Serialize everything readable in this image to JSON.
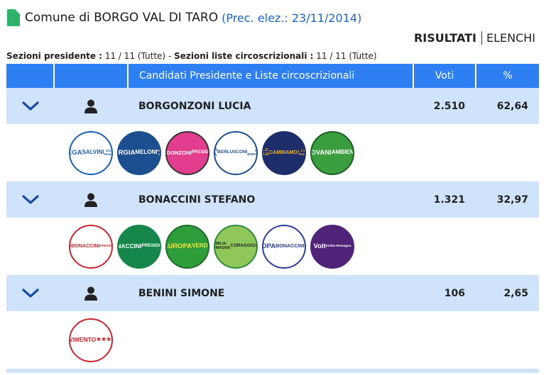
{
  "header": {
    "comune": "Comune di BORGO VAL DI TARO",
    "prec": "(Prec. elez.: 23/11/2014)"
  },
  "modes": {
    "risultati": "RISULTATI",
    "elenchi": "ELENCHI"
  },
  "sezioni": {
    "pres_label": "Sezioni presidente :",
    "pres_value": "11 / 11 (Tutte)",
    "sep": "-",
    "liste_label": "Sezioni liste circoscrizionali :",
    "liste_value": "11 / 11 (Tutte)"
  },
  "table": {
    "headers": {
      "cand": "Candidati Presidente e Liste circoscrizionali",
      "voti": "Voti",
      "pct": "%"
    },
    "candidates": [
      {
        "name": "BORGONZONI LUCIA",
        "voti": "2.510",
        "pct": "62,64",
        "lists": [
          {
            "icon": "lega-salvini-logo",
            "text": [
              "LEGA",
              "SALVINI",
              "Emilia-Romagna"
            ],
            "bg": "#ffffff",
            "fg": "#1a5fb4",
            "border": "#1a5fb4"
          },
          {
            "icon": "giorgia-meloni-fratelli-italia-logo",
            "text": [
              "GIORGIA",
              "MELONI",
              "FRATELLI d'ITALIA"
            ],
            "bg": "#1c4f8f",
            "fg": "#ffffff",
            "border": "#1c4f8f"
          },
          {
            "icon": "borgonzoni-presidente-logo",
            "text": [
              "BORGONZONI",
              "PRESIDENTE"
            ],
            "bg": "#e23d8f",
            "fg": "#ffffff",
            "border": "#333333"
          },
          {
            "icon": "forza-italia-berlusconi-logo",
            "text": [
              "FORZA ITALIA",
              "BERLUSCONI",
              "PER BORGONZONI"
            ],
            "bg": "#ffffff",
            "fg": "#1c4f8f",
            "border": "#1c4f8f"
          },
          {
            "icon": "cambiamo-logo",
            "text": [
              "POPOLO FAMIGLIA",
              "CAMBIAMO!",
              "L'EMILIA ROMAGNA"
            ],
            "bg": "#1d2e6b",
            "fg": "#f5b52e",
            "border": "#1d2e6b"
          },
          {
            "icon": "giovani-per-ambiente-logo",
            "text": [
              "GIOVANI",
              "AMBIENTE"
            ],
            "bg": "#3a9e3f",
            "fg": "#ffffff",
            "border": "#1e5e22"
          }
        ]
      },
      {
        "name": "BONACCINI STEFANO",
        "voti": "1.321",
        "pct": "32,97",
        "lists": [
          {
            "icon": "partito-democratico-logo",
            "text": [
              "PD",
              "BONACCINI",
              "PRESIDENTE"
            ],
            "bg": "#ffffff",
            "fg": "#c8272f",
            "border": "#c8272f"
          },
          {
            "icon": "bonaccini-presidente-logo",
            "text": [
              "BONACCINI",
              "PRESIDENTE"
            ],
            "bg": "#16864a",
            "fg": "#ffffff",
            "border": "#16864a"
          },
          {
            "icon": "europa-verde-logo",
            "text": [
              "EUROPA",
              "VERDE"
            ],
            "bg": "#2e9e3b",
            "fg": "#f3e63a",
            "border": "#1f6b27"
          },
          {
            "icon": "emilia-romagna-coraggiosa-logo",
            "text": [
              "EMILIA-ROMAGNA",
              "CORAGGIOSA"
            ],
            "bg": "#8fc75a",
            "fg": "#222222",
            "border": "#2e8b3c"
          },
          {
            "icon": "piu-europa-logo",
            "text": [
              "+EUROPA",
              "BONACCINI",
              "PRESIDENTE"
            ],
            "bg": "#ffffff",
            "fg": "#2a3d9a",
            "border": "#2a3d9a"
          },
          {
            "icon": "volt-logo",
            "text": [
              "Volt",
              "Emilia-Romagna"
            ],
            "bg": "#502379",
            "fg": "#ffffff",
            "border": "#502379"
          }
        ]
      },
      {
        "name": "BENINI SIMONE",
        "voti": "106",
        "pct": "2,65",
        "lists": [
          {
            "icon": "movimento-5-stelle-logo",
            "text": [
              "MoVIMENTO",
              "★★★★★"
            ],
            "bg": "#ffffff",
            "fg": "#c8272f",
            "border": "#c8272f"
          }
        ]
      }
    ]
  }
}
